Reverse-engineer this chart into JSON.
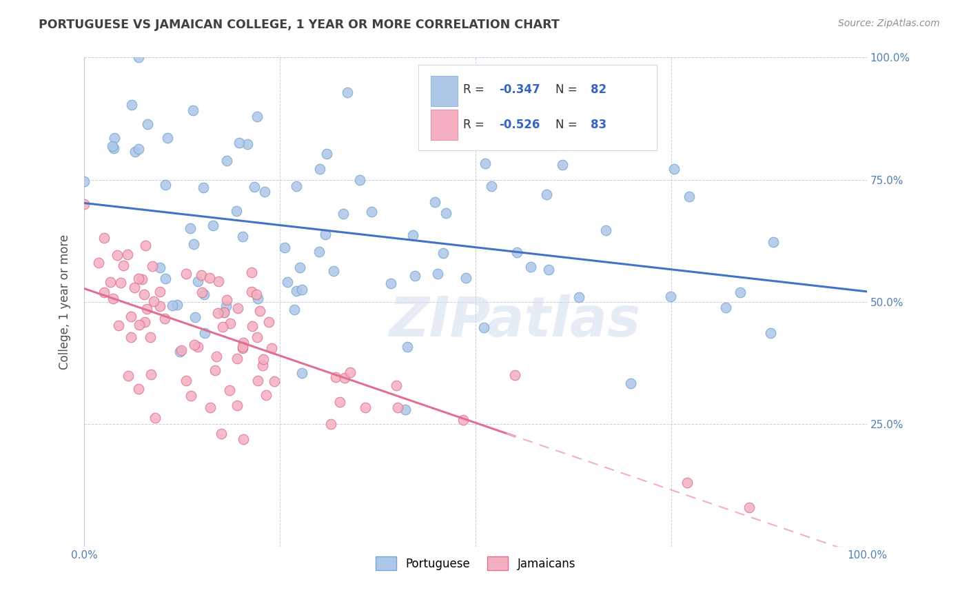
{
  "title": "PORTUGUESE VS JAMAICAN COLLEGE, 1 YEAR OR MORE CORRELATION CHART",
  "source": "Source: ZipAtlas.com",
  "ylabel": "College, 1 year or more",
  "xlim": [
    0,
    1
  ],
  "ylim": [
    0,
    1
  ],
  "portuguese_R": -0.347,
  "portuguese_N": 82,
  "jamaican_R": -0.526,
  "jamaican_N": 83,
  "portuguese_color": "#aec6e8",
  "portuguese_edge": "#6fa8d4",
  "jamaican_color": "#f4afc0",
  "jamaican_edge": "#e07090",
  "blue_line_color": "#4472c4",
  "pink_line_color": "#e07090",
  "pink_dashed_color": "#f0b0c0",
  "watermark": "ZIPatlas",
  "title_color": "#404040",
  "axis_color": "#5080b0",
  "grid_color": "#c0c8d8",
  "seed": 7
}
